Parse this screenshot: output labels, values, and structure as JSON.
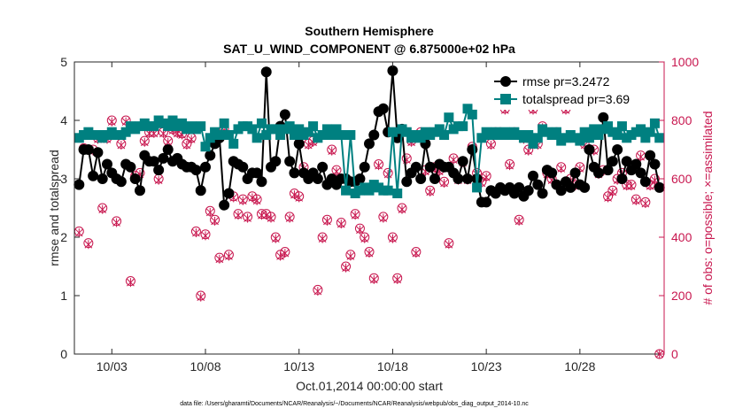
{
  "chart_data": {
    "type": "line",
    "title": "Southern Hemisphere",
    "subtitle": "SAT_U_WIND_COMPONENT @ 6.875000e+02 hPa",
    "xlabel": "Oct.01,2014 00:00:00 start",
    "ylabel": "rmse and totalspread",
    "ylabel_right": "# of obs: o=possible; ×=assimilated",
    "footnote": "data file: /Users/gharamti/Documents/NCAR/Reanalysis/~/Documents/NCAR/Reanalysis/webpub/obs_diag_output_2014-10.nc",
    "xlim": [
      1,
      32.5
    ],
    "ylim": [
      0,
      5
    ],
    "ylim_right": [
      0,
      1000
    ],
    "x_ticks": [
      3,
      8,
      13,
      18,
      23,
      28
    ],
    "x_tick_labels": [
      "10/03",
      "10/08",
      "10/13",
      "10/18",
      "10/23",
      "10/28"
    ],
    "y_ticks": [
      0,
      1,
      2,
      3,
      4,
      5
    ],
    "y_tick_labels": [
      "0",
      "1",
      "2",
      "3",
      "4",
      "5"
    ],
    "y_ticks_right": [
      0,
      200,
      400,
      600,
      800,
      1000
    ],
    "y_tick_labels_right": [
      "0",
      "200",
      "400",
      "600",
      "800",
      "1000"
    ],
    "legend": {
      "location": "top-right",
      "entries": [
        "rmse pr=3.2472",
        "totalspread pr=3.69"
      ]
    },
    "x": [
      1.25,
      1.5,
      1.75,
      2.0,
      2.25,
      2.5,
      2.75,
      3.0,
      3.25,
      3.5,
      3.75,
      4.0,
      4.25,
      4.5,
      4.75,
      5.0,
      5.25,
      5.5,
      5.75,
      6.0,
      6.25,
      6.5,
      6.75,
      7.0,
      7.25,
      7.5,
      7.75,
      8.0,
      8.25,
      8.5,
      8.75,
      9.0,
      9.25,
      9.5,
      9.75,
      10.0,
      10.25,
      10.5,
      10.75,
      11.0,
      11.25,
      11.5,
      11.75,
      12.0,
      12.25,
      12.5,
      12.75,
      13.0,
      13.25,
      13.5,
      13.75,
      14.0,
      14.25,
      14.5,
      14.75,
      15.0,
      15.25,
      15.5,
      15.75,
      16.0,
      16.25,
      16.5,
      16.75,
      17.0,
      17.25,
      17.5,
      17.75,
      18.0,
      18.25,
      18.5,
      18.75,
      19.0,
      19.25,
      19.5,
      19.75,
      20.0,
      20.25,
      20.5,
      20.75,
      21.0,
      21.25,
      21.5,
      21.75,
      22.0,
      22.25,
      22.5,
      22.75,
      23.0,
      23.25,
      23.5,
      23.75,
      24.0,
      24.25,
      24.5,
      24.75,
      25.0,
      25.25,
      25.5,
      25.75,
      26.0,
      26.25,
      26.5,
      26.75,
      27.0,
      27.25,
      27.5,
      27.75,
      28.0,
      28.25,
      28.5,
      28.75,
      29.0,
      29.25,
      29.5,
      29.75,
      30.0,
      30.25,
      30.5,
      30.75,
      31.0,
      31.25,
      31.5,
      31.75,
      32.0,
      32.25
    ],
    "series": [
      {
        "name": "rmse pr=3.2472",
        "axis": "left",
        "values": [
          2.9,
          3.5,
          3.5,
          3.05,
          3.45,
          3.0,
          3.25,
          3.1,
          3.0,
          2.95,
          3.25,
          3.2,
          3.0,
          2.8,
          3.4,
          3.3,
          3.3,
          3.15,
          3.35,
          3.5,
          3.3,
          3.35,
          3.25,
          3.2,
          3.2,
          3.15,
          2.8,
          3.2,
          3.4,
          3.6,
          3.7,
          2.55,
          2.75,
          3.3,
          3.25,
          3.2,
          3.0,
          3.1,
          3.1,
          2.95,
          4.83,
          3.2,
          3.3,
          3.9,
          4.1,
          3.3,
          3.1,
          3.6,
          3.1,
          3.0,
          3.1,
          3.0,
          3.2,
          2.9,
          3.0,
          2.9,
          3.0,
          3.0,
          2.95,
          2.95,
          3.0,
          3.2,
          3.6,
          3.75,
          4.15,
          4.2,
          3.8,
          4.85,
          3.7,
          3.85,
          2.95,
          3.1,
          3.2,
          3.0,
          3.6,
          3.2,
          3.0,
          3.25,
          3.2,
          3.2,
          3.1,
          3.0,
          3.3,
          3.0,
          3.5,
          3.0,
          2.6,
          2.6,
          2.8,
          2.75,
          2.85,
          2.8,
          2.85,
          2.75,
          2.85,
          2.7,
          2.8,
          3.05,
          2.9,
          2.75,
          3.15,
          3.1,
          2.9,
          2.8,
          2.95,
          2.85,
          3.1,
          2.9,
          2.85,
          3.5,
          3.2,
          3.1,
          4.05,
          3.15,
          3.3,
          3.5,
          3.0,
          3.3,
          3.15,
          3.25,
          3.1,
          2.95,
          3.4,
          3.25,
          2.85
        ],
        "color": "#000000"
      },
      {
        "name": "totalspread pr=3.69",
        "axis": "left",
        "values": [
          3.7,
          3.75,
          3.8,
          3.75,
          3.75,
          3.7,
          3.75,
          3.8,
          3.75,
          3.75,
          3.8,
          3.9,
          3.85,
          3.9,
          3.95,
          3.9,
          3.9,
          4.0,
          3.95,
          3.9,
          4.0,
          3.9,
          3.95,
          3.85,
          3.9,
          3.85,
          3.9,
          3.55,
          3.7,
          3.8,
          3.75,
          3.95,
          3.75,
          3.6,
          3.85,
          3.9,
          3.9,
          3.85,
          3.7,
          3.95,
          3.75,
          3.85,
          3.85,
          3.75,
          3.85,
          3.9,
          3.75,
          3.85,
          3.75,
          3.8,
          3.9,
          3.7,
          3.75,
          3.85,
          3.75,
          3.85,
          3.75,
          2.8,
          3.75,
          2.75,
          2.8,
          2.85,
          2.8,
          2.9,
          2.85,
          2.8,
          2.8,
          3.8,
          2.75,
          3.85,
          3.8,
          3.7,
          3.75,
          3.7,
          3.8,
          3.75,
          3.8,
          3.85,
          3.75,
          4.05,
          3.85,
          3.9,
          3.9,
          4.2,
          4.1,
          2.85,
          3.7,
          3.8,
          3.75,
          3.8,
          3.75,
          3.8,
          3.75,
          3.8,
          3.75,
          3.7,
          3.75,
          3.6,
          3.7,
          3.85,
          3.8,
          3.75,
          3.8,
          3.65,
          3.7,
          3.75,
          3.7,
          3.65,
          3.8,
          3.7,
          3.85,
          3.75,
          3.85,
          3.9,
          3.8,
          3.75,
          3.9,
          3.7,
          3.75,
          3.8,
          3.85,
          3.7,
          3.8,
          3.95,
          3.7
        ],
        "color": "#008080"
      },
      {
        "name": "possible",
        "axis": "right",
        "marker": "circle",
        "values": [
          420,
          705,
          380,
          700,
          740,
          500,
          740,
          800,
          455,
          720,
          800,
          250,
          610,
          620,
          730,
          760,
          760,
          600,
          760,
          730,
          770,
          760,
          755,
          720,
          740,
          420,
          200,
          410,
          490,
          460,
          330,
          770,
          340,
          540,
          480,
          530,
          470,
          540,
          530,
          480,
          480,
          470,
          400,
          340,
          350,
          470,
          550,
          540,
          640,
          720,
          730,
          220,
          400,
          460,
          700,
          630,
          450,
          300,
          340,
          480,
          430,
          400,
          350,
          260,
          650,
          470,
          620,
          400,
          260,
          500,
          670,
          730,
          350,
          760,
          630,
          560,
          640,
          630,
          590,
          380,
          670,
          600,
          660,
          600,
          710,
          620,
          590,
          610,
          720,
          760,
          760,
          840,
          650,
          760,
          460,
          740,
          700,
          840,
          720,
          780,
          620,
          600,
          760,
          640,
          840,
          600,
          580,
          640,
          720,
          760,
          700,
          620,
          630,
          540,
          560,
          600,
          620,
          580,
          580,
          530,
          680,
          520,
          580,
          600,
          0
        ],
        "color": "#c8174f"
      },
      {
        "name": "assimilated",
        "axis": "right",
        "marker": "x",
        "values": [
          415,
          700,
          375,
          695,
          735,
          495,
          735,
          795,
          450,
          715,
          795,
          245,
          605,
          615,
          725,
          755,
          755,
          595,
          755,
          725,
          765,
          755,
          750,
          715,
          735,
          415,
          195,
          405,
          485,
          455,
          325,
          765,
          335,
          535,
          475,
          525,
          465,
          535,
          525,
          475,
          475,
          465,
          395,
          335,
          345,
          465,
          545,
          535,
          635,
          715,
          725,
          215,
          395,
          455,
          695,
          625,
          445,
          295,
          335,
          475,
          425,
          395,
          345,
          255,
          645,
          465,
          615,
          395,
          255,
          495,
          665,
          725,
          345,
          755,
          625,
          555,
          635,
          625,
          585,
          375,
          665,
          595,
          655,
          595,
          705,
          615,
          585,
          605,
          715,
          755,
          755,
          835,
          645,
          755,
          455,
          735,
          695,
          835,
          715,
          775,
          615,
          595,
          755,
          635,
          835,
          595,
          575,
          635,
          715,
          755,
          695,
          615,
          625,
          535,
          555,
          595,
          615,
          575,
          575,
          525,
          675,
          515,
          575,
          595,
          0
        ],
        "color": "#c8174f"
      }
    ]
  }
}
